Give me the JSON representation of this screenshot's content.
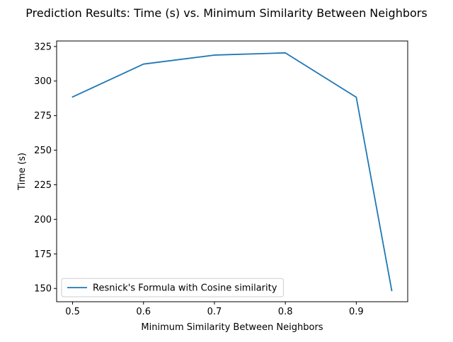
{
  "chart_data": {
    "type": "line",
    "title": "Prediction Results: Time (s) vs. Minimum Similarity Between Neighbors",
    "xlabel": "Minimum Similarity Between Neighbors",
    "ylabel": "Time (s)",
    "xlim": [
      0.4775,
      0.9725
    ],
    "ylim": [
      140.4,
      329.0
    ],
    "x_ticks": [
      0.5,
      0.6,
      0.7,
      0.8,
      0.9
    ],
    "x_tick_labels": [
      "0.5",
      "0.6",
      "0.7",
      "0.8",
      "0.9"
    ],
    "y_ticks": [
      150,
      175,
      200,
      225,
      250,
      275,
      300,
      325
    ],
    "y_tick_labels": [
      "150",
      "175",
      "200",
      "225",
      "250",
      "275",
      "300",
      "325"
    ],
    "grid": false,
    "legend_position": "lower-left",
    "series": [
      {
        "name": "Resnick's Formula with Cosine similarity",
        "color": "#1f77b4",
        "x": [
          0.5,
          0.6,
          0.7,
          0.8,
          0.9,
          0.95
        ],
        "y": [
          288.5,
          312.3,
          318.8,
          320.4,
          288.3,
          148.5
        ]
      }
    ]
  }
}
